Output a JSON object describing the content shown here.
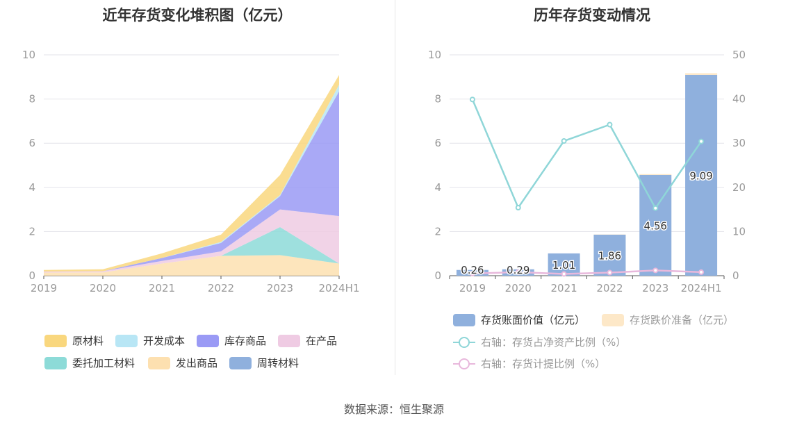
{
  "chart_data": [
    {
      "type": "area",
      "title": "近年存货变化堆积图（亿元）",
      "categories": [
        "2019",
        "2020",
        "2021",
        "2022",
        "2023",
        "2024H1"
      ],
      "ylim": [
        0,
        10
      ],
      "y_ticks": [
        0,
        2,
        4,
        6,
        8,
        10
      ],
      "stacked": true,
      "grid": true,
      "legend_position": "bottom",
      "series": [
        {
          "name": "周转材料",
          "color": "#8fb0dd",
          "values": [
            0.0,
            0.0,
            0.0,
            0.0,
            0.0,
            0.0
          ]
        },
        {
          "name": "发出商品",
          "color": "#fde0b0",
          "values": [
            0.14,
            0.15,
            0.55,
            0.9,
            0.93,
            0.55
          ]
        },
        {
          "name": "委托加工材料",
          "color": "#8ddbd8",
          "values": [
            0.0,
            0.0,
            0.0,
            0.0,
            1.27,
            0.0
          ]
        },
        {
          "name": "在产品",
          "color": "#efcbe3",
          "values": [
            0.05,
            0.05,
            0.12,
            0.2,
            0.8,
            2.15
          ]
        },
        {
          "name": "库存商品",
          "color": "#9a9af5",
          "values": [
            0.0,
            0.0,
            0.13,
            0.38,
            0.6,
            5.65
          ]
        },
        {
          "name": "开发成本",
          "color": "#b8e6f5",
          "values": [
            0.0,
            0.0,
            0.0,
            0.05,
            0.05,
            0.3
          ]
        },
        {
          "name": "原材料",
          "color": "#f9d77e",
          "values": [
            0.07,
            0.09,
            0.21,
            0.33,
            0.91,
            0.44
          ]
        }
      ]
    },
    {
      "type": "bar",
      "title": "历年存货变动情况",
      "categories": [
        "2019",
        "2020",
        "2021",
        "2022",
        "2023",
        "2024H1"
      ],
      "ylim": [
        0,
        10
      ],
      "y_ticks": [
        0,
        2,
        4,
        6,
        8,
        10
      ],
      "y2lim": [
        0,
        50
      ],
      "y2_ticks": [
        0,
        10,
        20,
        30,
        40,
        50
      ],
      "grid": true,
      "legend_position": "bottom",
      "series": [
        {
          "name": "存货账面价值（亿元）",
          "type": "bar",
          "color": "#8fb0dd",
          "values": [
            0.26,
            0.29,
            1.01,
            1.86,
            4.56,
            9.09
          ],
          "labels": [
            "0.26",
            "0.29",
            "1.01",
            "1.86",
            "4.56",
            "9.09"
          ]
        },
        {
          "name": "存货跌价准备（亿元）",
          "type": "bar",
          "color": "#fde8c8",
          "values": [
            0.0,
            0.0,
            0.0,
            0.01,
            0.04,
            0.08
          ]
        },
        {
          "name": "右轴：存货占净资产比例（%）",
          "type": "line",
          "axis": "right",
          "color": "#8fd6d8",
          "values": [
            39.9,
            15.4,
            30.5,
            34.2,
            15.3,
            30.4
          ]
        },
        {
          "name": "右轴：存货计提比例（%）",
          "type": "line",
          "axis": "right",
          "color": "#e8b8dc",
          "values": [
            0.5,
            0.8,
            0.4,
            0.7,
            1.2,
            0.8
          ]
        }
      ]
    }
  ],
  "source_text": "数据来源：恒生聚源"
}
